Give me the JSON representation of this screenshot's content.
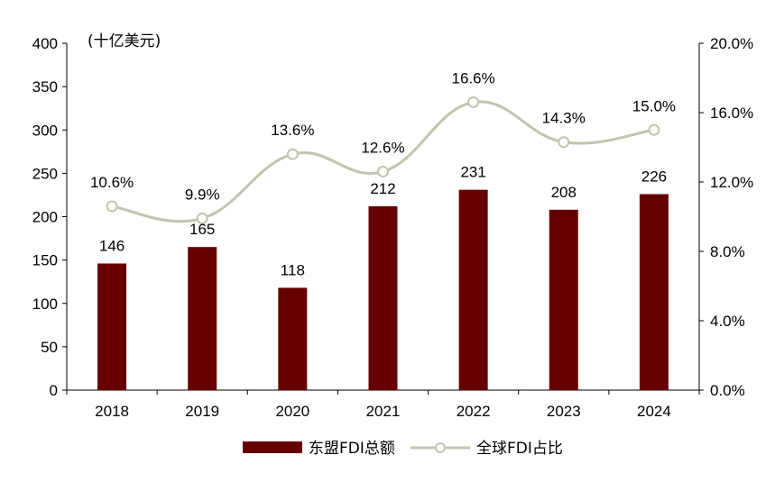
{
  "chart_data": {
    "type": "bar",
    "categories": [
      "2018",
      "2019",
      "2020",
      "2021",
      "2022",
      "2023",
      "2024"
    ],
    "series": [
      {
        "name": "东盟FDI总额",
        "type": "bar",
        "axis": "left",
        "values": [
          146,
          165,
          118,
          212,
          231,
          208,
          226
        ],
        "labels": [
          "146",
          "165",
          "118",
          "212",
          "231",
          "208",
          "226"
        ]
      },
      {
        "name": "全球FDI占比",
        "type": "line",
        "axis": "right",
        "values": [
          10.6,
          9.9,
          13.6,
          12.6,
          16.6,
          14.3,
          15.0
        ],
        "labels": [
          "10.6%",
          "9.9%",
          "13.6%",
          "12.6%",
          "16.6%",
          "14.3%",
          "15.0%"
        ]
      }
    ],
    "left_axis": {
      "unit_label": "(十亿美元)",
      "ylim": [
        0,
        400
      ],
      "ticks": [
        0,
        50,
        100,
        150,
        200,
        250,
        300,
        350,
        400
      ],
      "tick_labels": [
        "0",
        "50",
        "100",
        "150",
        "200",
        "250",
        "300",
        "350",
        "400"
      ]
    },
    "right_axis": {
      "ylim": [
        0,
        20
      ],
      "ticks": [
        0,
        4,
        8,
        12,
        16,
        20
      ],
      "tick_labels": [
        "0.0%",
        "4.0%",
        "8.0%",
        "12.0%",
        "16.0%",
        "20.0%"
      ]
    },
    "grid": false,
    "legend": "bottom",
    "colors": {
      "bar": "#660000",
      "line": "#c3c3b0",
      "marker_fill": "#ffffff",
      "axis": "#000000"
    }
  }
}
